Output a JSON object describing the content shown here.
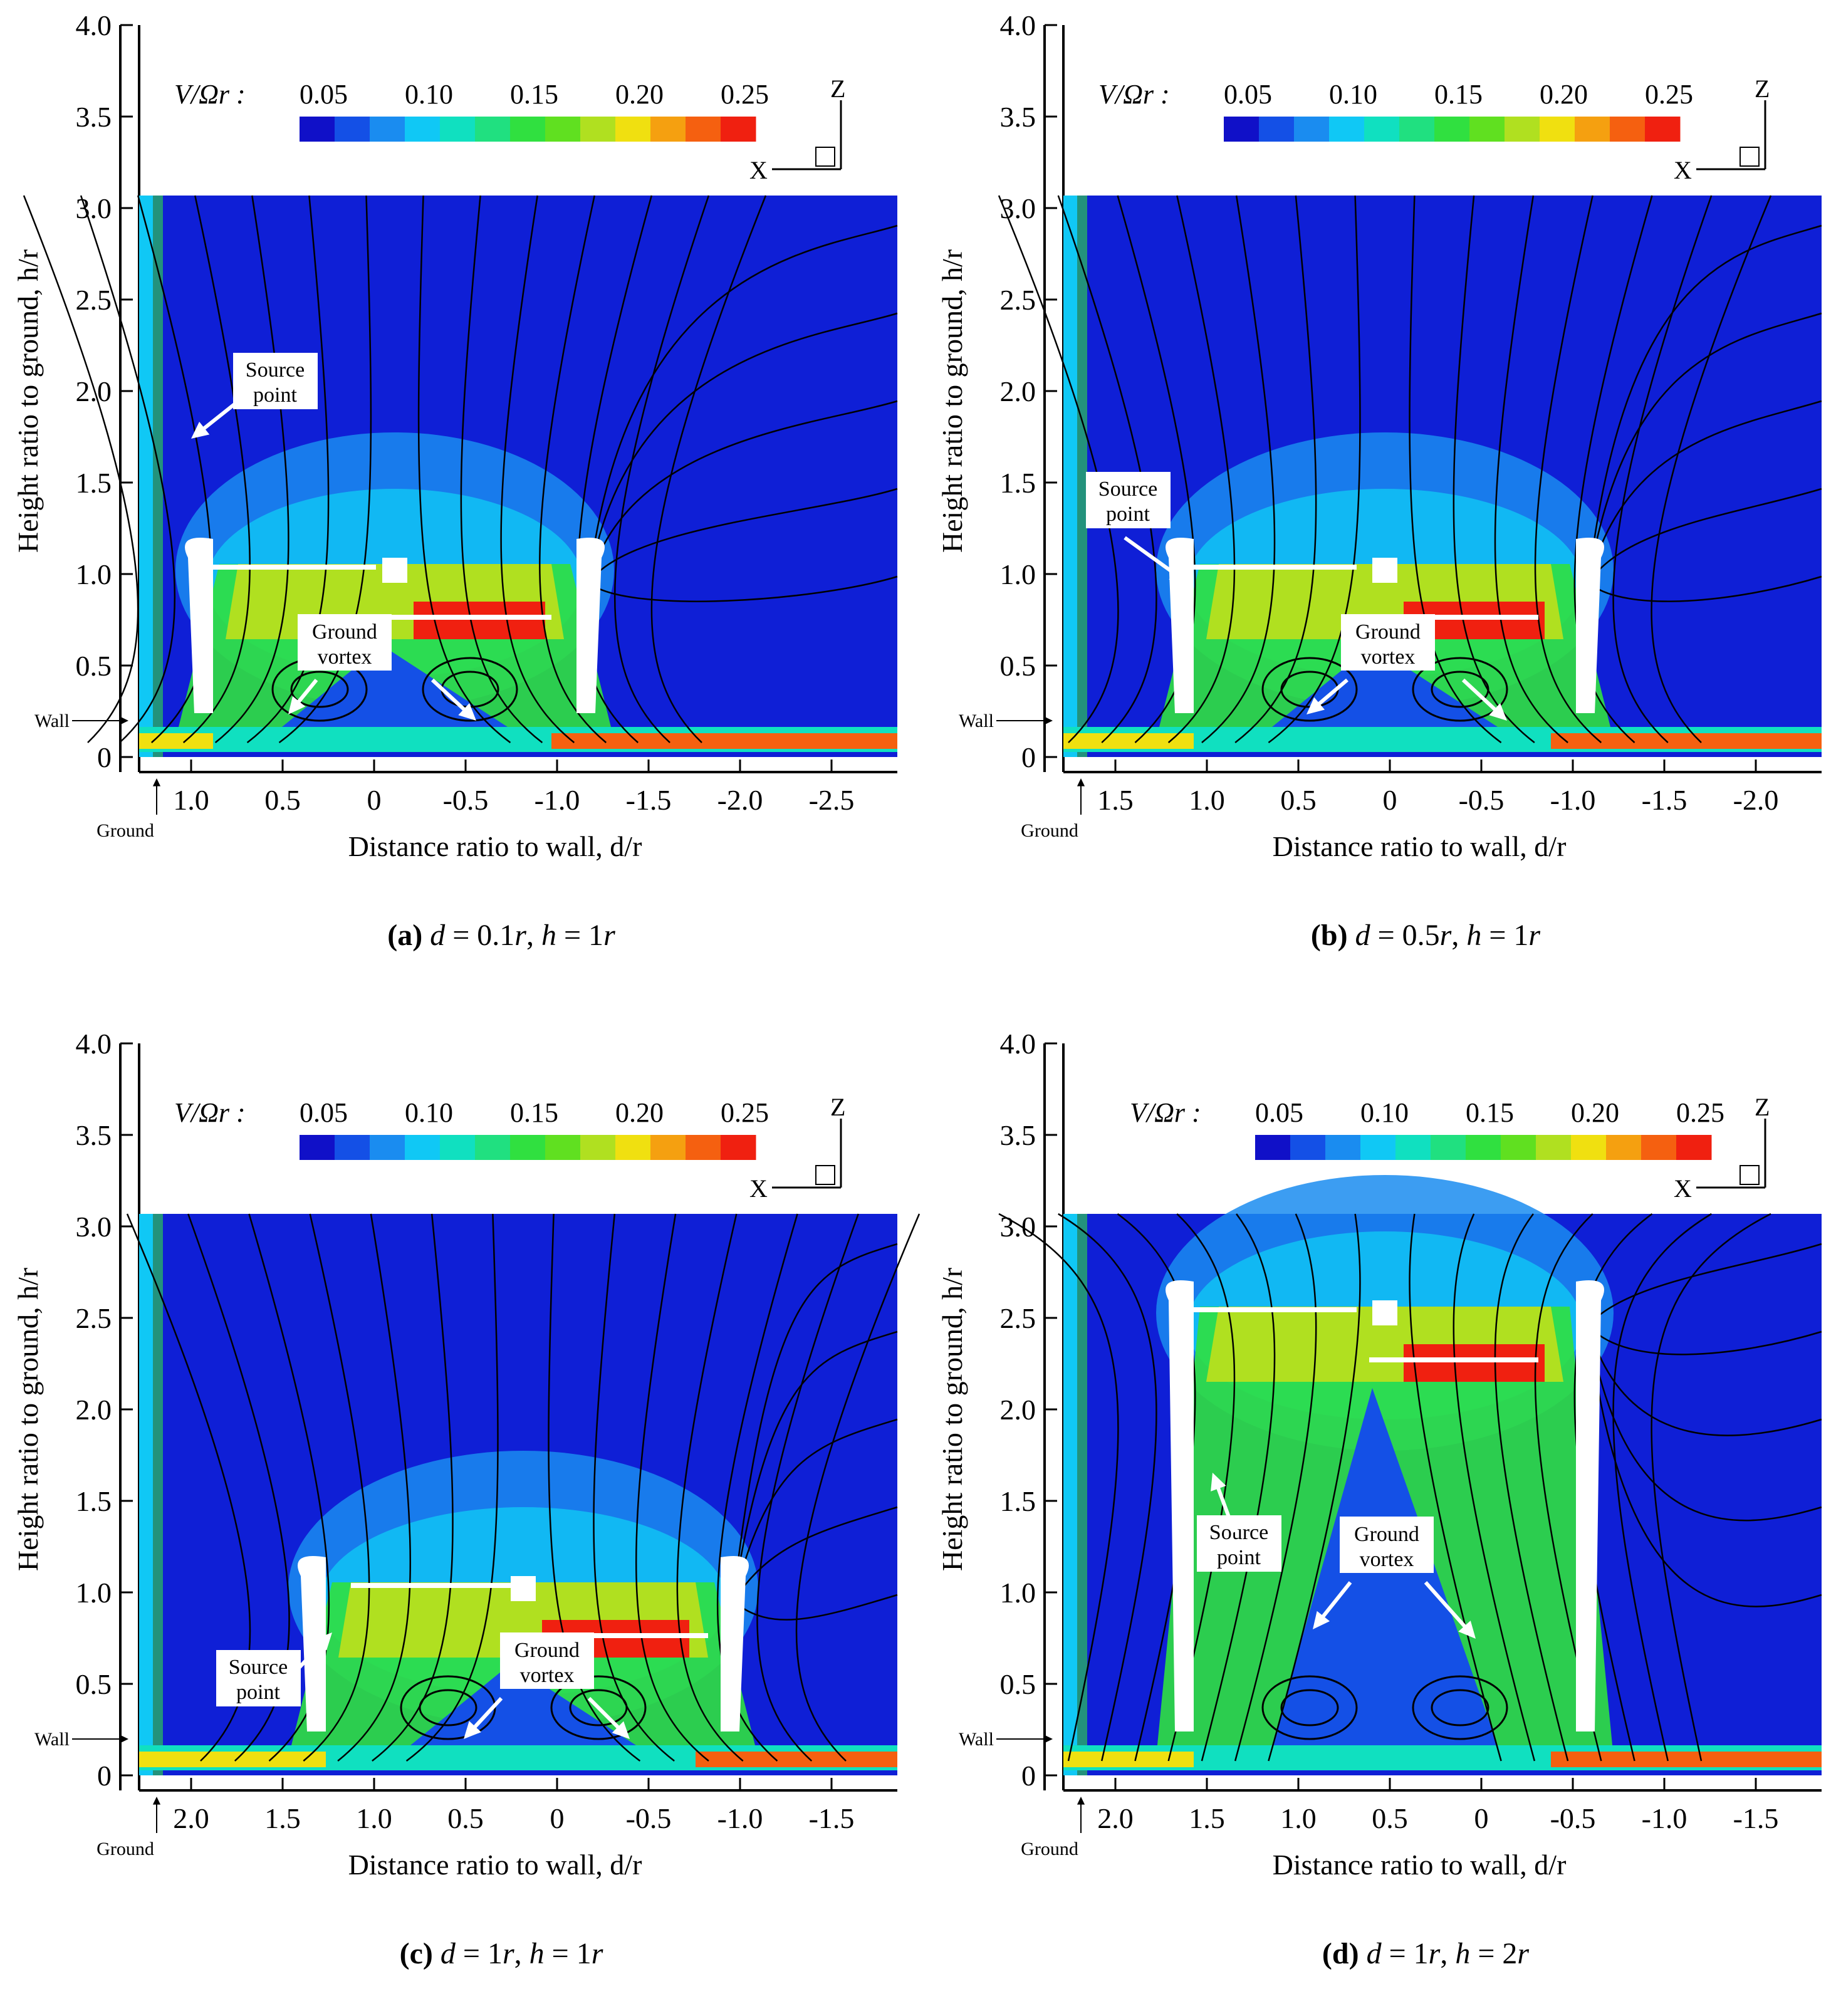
{
  "colorbar": {
    "title": "V/Ωr :",
    "ticks": [
      "0.05",
      "0.10",
      "0.15",
      "0.20",
      "0.25"
    ],
    "colors": [
      "#1010c8",
      "#1450e6",
      "#1a8cf0",
      "#10c8f5",
      "#10e0c0",
      "#20e080",
      "#30e040",
      "#60e020",
      "#b0e020",
      "#f0e010",
      "#f5a010",
      "#f56010",
      "#f02010"
    ],
    "background": "#0f1fd6"
  },
  "axes": {
    "y_label": "Height ratio to ground, h/r",
    "x_label": "Distance ratio to wall, d/r",
    "y_ticks": [
      "4.0",
      "3.5",
      "3.0",
      "2.5",
      "2.0",
      "1.5",
      "1.0",
      "0.5",
      "0"
    ],
    "z_axis_label": "Z",
    "x_axis_label": "X"
  },
  "panels": [
    {
      "id": "a",
      "caption_letter": "(a)",
      "caption_rest": [
        {
          "t": "d",
          "i": true
        },
        {
          "t": " = 0.1",
          "i": false
        },
        {
          "t": "r",
          "i": true
        },
        {
          "t": ", ",
          "i": false
        },
        {
          "t": "h",
          "i": true
        },
        {
          "t": " = 1",
          "i": false
        },
        {
          "t": "r",
          "i": true
        }
      ],
      "x_ticks": [
        "1.0",
        "0.5",
        "0",
        "-0.5",
        "-1.0",
        "-1.5",
        "-2.0",
        "-2.5"
      ],
      "labels": {
        "source": [
          "Source",
          "point"
        ],
        "vortex": [
          "Ground",
          "vortex"
        ],
        "wall": "Wall",
        "ground": "Ground"
      }
    },
    {
      "id": "b",
      "caption_letter": "(b)",
      "caption_rest": [
        {
          "t": "d",
          "i": true
        },
        {
          "t": " = 0.5",
          "i": false
        },
        {
          "t": "r",
          "i": true
        },
        {
          "t": ", ",
          "i": false
        },
        {
          "t": "h",
          "i": true
        },
        {
          "t": " = 1",
          "i": false
        },
        {
          "t": "r",
          "i": true
        }
      ],
      "x_ticks": [
        "1.5",
        "1.0",
        "0.5",
        "0",
        "-0.5",
        "-1.0",
        "-1.5",
        "-2.0"
      ],
      "labels": {
        "source": [
          "Source",
          "point"
        ],
        "vortex": [
          "Ground",
          "vortex"
        ],
        "wall": "Wall",
        "ground": "Ground"
      }
    },
    {
      "id": "c",
      "caption_letter": "(c)",
      "caption_rest": [
        {
          "t": "d",
          "i": true
        },
        {
          "t": " = 1",
          "i": false
        },
        {
          "t": "r",
          "i": true
        },
        {
          "t": ", ",
          "i": false
        },
        {
          "t": "h",
          "i": true
        },
        {
          "t": " = 1",
          "i": false
        },
        {
          "t": "r",
          "i": true
        }
      ],
      "x_ticks": [
        "2.0",
        "1.5",
        "1.0",
        "0.5",
        "0",
        "-0.5",
        "-1.0",
        "-1.5"
      ],
      "labels": {
        "source": [
          "Source",
          "point"
        ],
        "vortex": [
          "Ground",
          "vortex"
        ],
        "wall": "Wall",
        "ground": "Ground"
      }
    },
    {
      "id": "d",
      "caption_letter": "(d)",
      "caption_rest": [
        {
          "t": "d",
          "i": true
        },
        {
          "t": " = 1",
          "i": false
        },
        {
          "t": "r",
          "i": true
        },
        {
          "t": ", ",
          "i": false
        },
        {
          "t": "h",
          "i": true
        },
        {
          "t": " = 2",
          "i": false
        },
        {
          "t": "r",
          "i": true
        }
      ],
      "x_ticks": [
        "2.0",
        "1.5",
        "1.0",
        "0.5",
        "0",
        "-0.5",
        "-1.0",
        "-1.5"
      ],
      "labels": {
        "source": [
          "Source",
          "point"
        ],
        "vortex": [
          "Ground",
          "vortex"
        ],
        "wall": "Wall",
        "ground": "Ground"
      }
    }
  ]
}
